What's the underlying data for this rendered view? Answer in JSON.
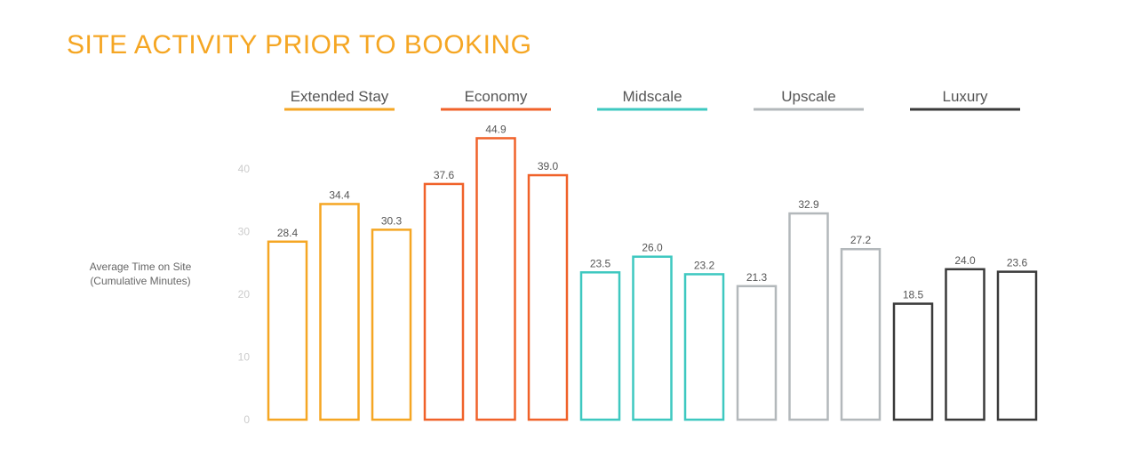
{
  "chart_data": {
    "type": "bar",
    "title": "SITE ACTIVITY PRIOR TO BOOKING",
    "ylabel_lines": [
      "Average Time on Site",
      "(Cumulative Minutes)"
    ],
    "xlabel": "",
    "ylim": [
      0,
      48
    ],
    "yticks": [
      0,
      10,
      20,
      30,
      40
    ],
    "grid": false,
    "legend_position": "top",
    "groups": [
      {
        "name": "Extended Stay",
        "color": "#f5a623",
        "values": [
          28.4,
          34.4,
          30.3
        ]
      },
      {
        "name": "Economy",
        "color": "#f0622a",
        "values": [
          37.6,
          44.9,
          39.0
        ]
      },
      {
        "name": "Midscale",
        "color": "#3ec8c0",
        "values": [
          23.5,
          26.0,
          23.2
        ]
      },
      {
        "name": "Upscale",
        "color": "#b3b8bb",
        "values": [
          21.3,
          32.9,
          27.2
        ]
      },
      {
        "name": "Luxury",
        "color": "#3a3a3a",
        "values": [
          18.5,
          24.0,
          23.6
        ]
      }
    ]
  }
}
